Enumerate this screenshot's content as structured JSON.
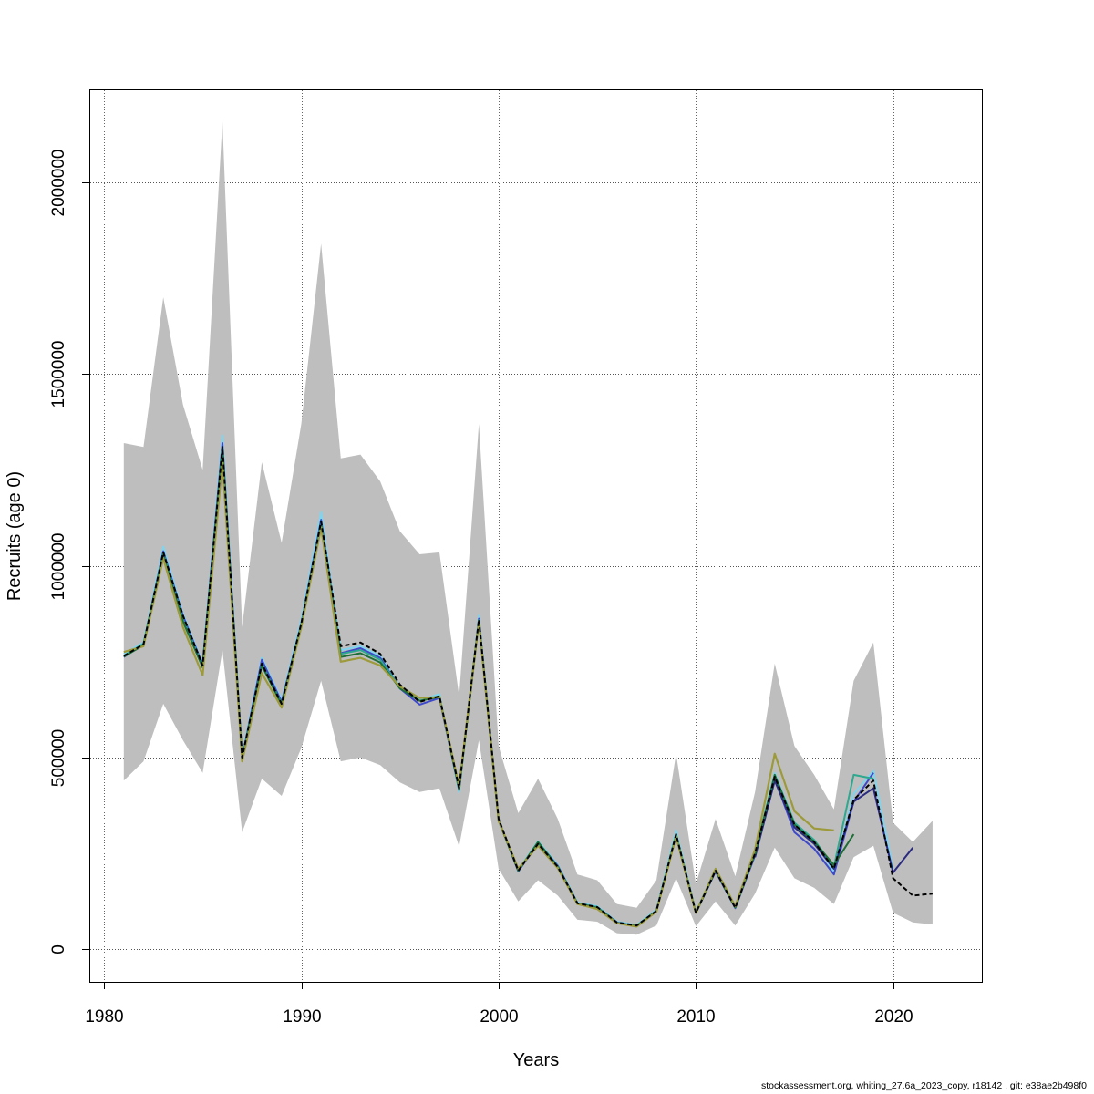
{
  "footer": "stockassessment.org, whiting_27.6a_2023_copy, r18142 , git: e38ae2b498f0",
  "chart_data": {
    "type": "line",
    "title": "",
    "xlabel": "Years",
    "ylabel": "Recruits (age 0)",
    "xlim": [
      1979.3,
      2024.5
    ],
    "ylim": [
      -85000,
      2240000
    ],
    "xticks": [
      1980,
      1990,
      2000,
      2010,
      2020
    ],
    "yticks": [
      0,
      500000,
      1000000,
      1500000,
      2000000
    ],
    "grid": true,
    "band_color": "#bebebe",
    "confidence_band": {
      "x": [
        1981,
        1982,
        1983,
        1984,
        1985,
        1986,
        1987,
        1988,
        1989,
        1990,
        1991,
        1992,
        1993,
        1994,
        1995,
        1996,
        1997,
        1998,
        1999,
        2000,
        2001,
        2002,
        2003,
        2004,
        2005,
        2006,
        2007,
        2008,
        2009,
        2010,
        2011,
        2012,
        2013,
        2014,
        2015,
        2016,
        2017,
        2018,
        2019,
        2020,
        2021,
        2022
      ],
      "upper": [
        1320000,
        1310000,
        1700000,
        1420000,
        1250000,
        2160000,
        840000,
        1270000,
        1060000,
        1370000,
        1840000,
        1280000,
        1290000,
        1220000,
        1090000,
        1030000,
        1035000,
        660000,
        1370000,
        530000,
        355000,
        445000,
        340000,
        195000,
        180000,
        118000,
        108000,
        180000,
        510000,
        170000,
        340000,
        190000,
        410000,
        745000,
        530000,
        455000,
        365000,
        700000,
        800000,
        330000,
        280000,
        335000
      ],
      "lower": [
        440000,
        490000,
        640000,
        545000,
        460000,
        780000,
        305000,
        445000,
        400000,
        525000,
        700000,
        490000,
        500000,
        480000,
        435000,
        410000,
        420000,
        268000,
        545000,
        210000,
        125000,
        180000,
        140000,
        77000,
        72000,
        42000,
        38000,
        62000,
        185000,
        60000,
        125000,
        62000,
        145000,
        265000,
        185000,
        160000,
        118000,
        240000,
        270000,
        95000,
        70000,
        65000
      ]
    },
    "series": [
      {
        "color": "#000000",
        "dash": true,
        "width": 2,
        "x": [
          1981,
          1982,
          1983,
          1984,
          1985,
          1986,
          1987,
          1988,
          1989,
          1990,
          1991,
          1992,
          1993,
          1994,
          1995,
          1996,
          1997,
          1998,
          1999,
          2000,
          2001,
          2002,
          2003,
          2004,
          2005,
          2006,
          2007,
          2008,
          2009,
          2010,
          2011,
          2012,
          2013,
          2014,
          2015,
          2016,
          2017,
          2018,
          2019,
          2020,
          2021,
          2022
        ],
        "values": [
          765000,
          795000,
          1035000,
          870000,
          740000,
          1310000,
          500000,
          745000,
          640000,
          850000,
          1115000,
          790000,
          800000,
          770000,
          690000,
          645000,
          660000,
          420000,
          860000,
          340000,
          205000,
          275000,
          215000,
          120000,
          110000,
          70000,
          62000,
          100000,
          300000,
          95000,
          205000,
          108000,
          250000,
          450000,
          325000,
          280000,
          210000,
          390000,
          440000,
          185000,
          140000,
          145000
        ]
      },
      {
        "color": "#7fd4ee",
        "dash": false,
        "width": 2,
        "x": [
          1981,
          1982,
          1983,
          1984,
          1985,
          1986,
          1987,
          1988,
          1989,
          1990,
          1991,
          1992,
          1993,
          1994,
          1995,
          1996,
          1997,
          1998,
          1999,
          2000,
          2001,
          2002,
          2003,
          2004,
          2005,
          2006,
          2007,
          2008,
          2009,
          2010,
          2011,
          2012,
          2013,
          2014,
          2015,
          2016,
          2017,
          2018,
          2019,
          2020
        ],
        "values": [
          770000,
          800000,
          1050000,
          875000,
          745000,
          1340000,
          505000,
          760000,
          650000,
          860000,
          1140000,
          780000,
          790000,
          765000,
          685000,
          650000,
          665000,
          410000,
          870000,
          335000,
          208000,
          282000,
          220000,
          122000,
          112000,
          72000,
          63000,
          103000,
          310000,
          97000,
          210000,
          112000,
          255000,
          460000,
          330000,
          285000,
          200000,
          405000,
          465000,
          210000
        ]
      },
      {
        "color": "#3d49c8",
        "dash": false,
        "width": 2,
        "x": [
          1981,
          1982,
          1983,
          1984,
          1985,
          1986,
          1987,
          1988,
          1989,
          1990,
          1991,
          1992,
          1993,
          1994,
          1995,
          1996,
          1997,
          1998,
          1999,
          2000,
          2001,
          2002,
          2003,
          2004,
          2005,
          2006,
          2007,
          2008,
          2009,
          2010,
          2011,
          2012,
          2013,
          2014,
          2015,
          2016,
          2017,
          2018,
          2019
        ],
        "values": [
          762000,
          795000,
          1038000,
          870000,
          742000,
          1320000,
          498000,
          755000,
          645000,
          848000,
          1120000,
          772000,
          785000,
          760000,
          680000,
          638000,
          655000,
          415000,
          862000,
          338000,
          203000,
          278000,
          218000,
          120000,
          110000,
          70000,
          60000,
          100000,
          298000,
          95000,
          203000,
          107000,
          245000,
          445000,
          305000,
          262000,
          195000,
          385000,
          460000
        ]
      },
      {
        "color": "#2a2a80",
        "dash": false,
        "width": 2,
        "x": [
          2013,
          2014,
          2015,
          2016,
          2017,
          2018,
          2019,
          2020,
          2021
        ],
        "values": [
          240000,
          440000,
          318000,
          275000,
          210000,
          385000,
          420000,
          200000,
          265000
        ]
      },
      {
        "color": "#2ea88f",
        "dash": false,
        "width": 2,
        "x": [
          1981,
          1982,
          1983,
          1984,
          1985,
          1986,
          1987,
          1988,
          1989,
          1990,
          1991,
          1992,
          1993,
          1994,
          1995,
          1996,
          1997,
          1998,
          1999,
          2000,
          2001,
          2002,
          2003,
          2004,
          2005,
          2006,
          2007,
          2008,
          2009,
          2010,
          2011,
          2012,
          2013,
          2014,
          2015,
          2016,
          2017,
          2018,
          2019
        ],
        "values": [
          765000,
          797000,
          1032000,
          860000,
          738000,
          1305000,
          495000,
          742000,
          640000,
          845000,
          1110000,
          770000,
          780000,
          755000,
          682000,
          648000,
          660000,
          415000,
          858000,
          336000,
          205000,
          278000,
          216000,
          120000,
          110000,
          69000,
          61000,
          100000,
          300000,
          96000,
          206000,
          109000,
          250000,
          455000,
          330000,
          285000,
          215000,
          455000,
          445000
        ]
      },
      {
        "color": "#1e6e38",
        "dash": false,
        "width": 2,
        "x": [
          1981,
          1982,
          1983,
          1984,
          1985,
          1986,
          1987,
          1988,
          1989,
          1990,
          1991,
          1992,
          1993,
          1994,
          1995,
          1996,
          1997,
          1998,
          1999,
          2000,
          2001,
          2002,
          2003,
          2004,
          2005,
          2006,
          2007,
          2008,
          2009,
          2010,
          2011,
          2012,
          2013,
          2014,
          2015,
          2016,
          2017,
          2018
        ],
        "values": [
          763000,
          793000,
          1028000,
          855000,
          735000,
          1300000,
          493000,
          740000,
          638000,
          842000,
          1105000,
          762000,
          772000,
          748000,
          680000,
          648000,
          658000,
          418000,
          855000,
          335000,
          205000,
          280000,
          215000,
          120000,
          108000,
          69000,
          61000,
          100000,
          296000,
          95000,
          205000,
          109000,
          250000,
          455000,
          325000,
          280000,
          220000,
          300000
        ]
      },
      {
        "color": "#9c9a3a",
        "dash": false,
        "width": 2.2,
        "x": [
          1981,
          1982,
          1983,
          1984,
          1985,
          1986,
          1987,
          1988,
          1989,
          1990,
          1991,
          1992,
          1993,
          1994,
          1995,
          1996,
          1997,
          1998,
          1999,
          2000,
          2001,
          2002,
          2003,
          2004,
          2005,
          2006,
          2007,
          2008,
          2009,
          2010,
          2011,
          2012,
          2013,
          2014,
          2015,
          2016,
          2017
        ],
        "values": [
          775000,
          790000,
          1020000,
          840000,
          715000,
          1270000,
          490000,
          720000,
          630000,
          840000,
          1100000,
          750000,
          760000,
          740000,
          685000,
          655000,
          658000,
          425000,
          855000,
          335000,
          210000,
          270000,
          212000,
          118000,
          105000,
          68000,
          59000,
          98000,
          295000,
          95000,
          210000,
          112000,
          260000,
          510000,
          360000,
          315000,
          310000
        ]
      }
    ]
  }
}
